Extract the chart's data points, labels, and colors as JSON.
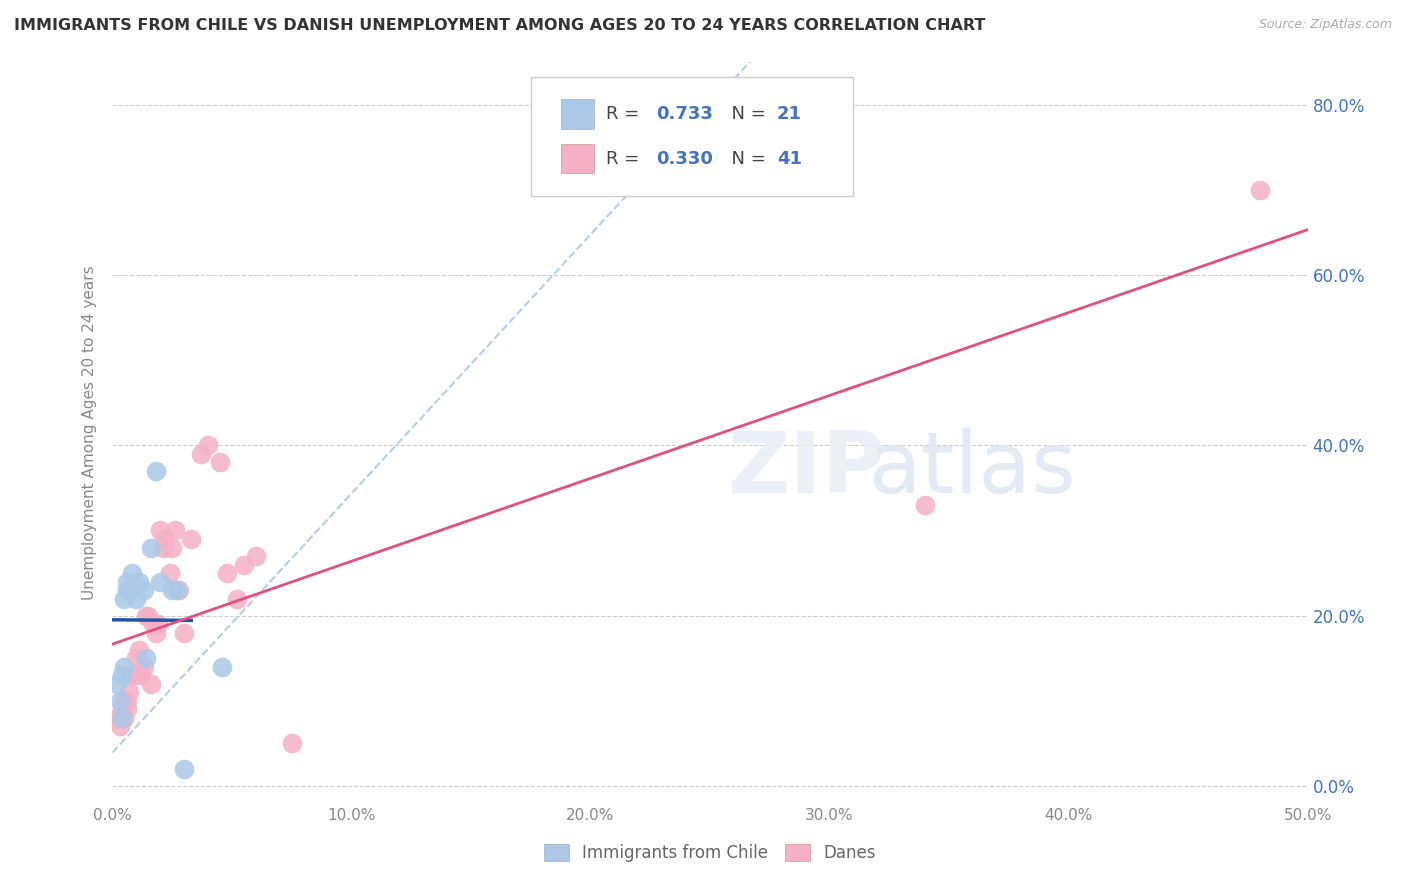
{
  "title": "IMMIGRANTS FROM CHILE VS DANISH UNEMPLOYMENT AMONG AGES 20 TO 24 YEARS CORRELATION CHART",
  "source": "Source: ZipAtlas.com",
  "ylabel": "Unemployment Among Ages 20 to 24 years",
  "xlim": [
    0.0,
    0.5
  ],
  "ylim": [
    -0.02,
    0.85
  ],
  "xticks": [
    0.0,
    0.1,
    0.2,
    0.3,
    0.4,
    0.5
  ],
  "yticks": [
    0.0,
    0.2,
    0.4,
    0.6,
    0.8
  ],
  "legend_R1": "0.733",
  "legend_N1": "21",
  "legend_R2": "0.330",
  "legend_N2": "41",
  "color_blue": "#aac8e8",
  "color_pink": "#f5b0c5",
  "color_blue_text": "#4472c4",
  "trendline_blue": "#2255aa",
  "trendline_pink": "#e05080",
  "diag_line_color": "#aac8e8",
  "scatter_blue_x": [
    0.002,
    0.003,
    0.004,
    0.004,
    0.005,
    0.005,
    0.006,
    0.006,
    0.007,
    0.008,
    0.01,
    0.011,
    0.013,
    0.014,
    0.016,
    0.018,
    0.02,
    0.025,
    0.027,
    0.03,
    0.046
  ],
  "scatter_blue_y": [
    0.12,
    0.1,
    0.08,
    0.13,
    0.22,
    0.14,
    0.23,
    0.24,
    0.23,
    0.25,
    0.22,
    0.24,
    0.23,
    0.15,
    0.28,
    0.37,
    0.24,
    0.23,
    0.23,
    0.02,
    0.14
  ],
  "scatter_pink_x": [
    0.002,
    0.003,
    0.003,
    0.004,
    0.004,
    0.005,
    0.005,
    0.006,
    0.006,
    0.007,
    0.008,
    0.009,
    0.01,
    0.011,
    0.012,
    0.013,
    0.014,
    0.015,
    0.016,
    0.017,
    0.018,
    0.019,
    0.02,
    0.021,
    0.022,
    0.024,
    0.025,
    0.026,
    0.028,
    0.03,
    0.033,
    0.037,
    0.04,
    0.045,
    0.048,
    0.052,
    0.055,
    0.06,
    0.075,
    0.34,
    0.48
  ],
  "scatter_pink_y": [
    0.08,
    0.07,
    0.08,
    0.08,
    0.09,
    0.1,
    0.08,
    0.1,
    0.09,
    0.11,
    0.13,
    0.13,
    0.15,
    0.16,
    0.13,
    0.14,
    0.2,
    0.2,
    0.12,
    0.19,
    0.18,
    0.19,
    0.3,
    0.28,
    0.29,
    0.25,
    0.28,
    0.3,
    0.23,
    0.18,
    0.29,
    0.39,
    0.4,
    0.38,
    0.25,
    0.22,
    0.26,
    0.27,
    0.05,
    0.33,
    0.7
  ],
  "background_color": "#ffffff",
  "grid_color": "#cccccc"
}
